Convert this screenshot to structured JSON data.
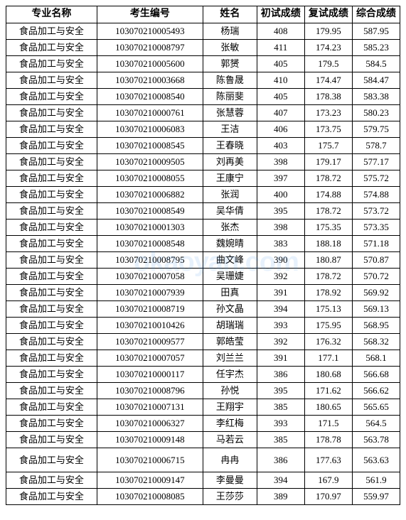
{
  "table": {
    "headers": [
      "专业名称",
      "考生编号",
      "姓名",
      "初试成绩",
      "复试成绩",
      "综合成绩"
    ],
    "rows": [
      [
        "食品加工与安全",
        "103070210005493",
        "杨瑞",
        "408",
        "179.95",
        "587.95"
      ],
      [
        "食品加工与安全",
        "103070210008797",
        "张敏",
        "411",
        "174.23",
        "585.23"
      ],
      [
        "食品加工与安全",
        "103070210005600",
        "郭赟",
        "405",
        "179.5",
        "584.5"
      ],
      [
        "食品加工与安全",
        "103070210003668",
        "陈鲁晟",
        "410",
        "174.47",
        "584.47"
      ],
      [
        "食品加工与安全",
        "103070210008540",
        "陈丽斐",
        "405",
        "178.38",
        "583.38"
      ],
      [
        "食品加工与安全",
        "103070210000761",
        "张慧蓉",
        "407",
        "173.23",
        "580.23"
      ],
      [
        "食品加工与安全",
        "103070210006083",
        "王洁",
        "406",
        "173.75",
        "579.75"
      ],
      [
        "食品加工与安全",
        "103070210008545",
        "王春晓",
        "403",
        "175.7",
        "578.7"
      ],
      [
        "食品加工与安全",
        "103070210009505",
        "刘再美",
        "398",
        "179.17",
        "577.17"
      ],
      [
        "食品加工与安全",
        "103070210008055",
        "王康宁",
        "397",
        "178.72",
        "575.72"
      ],
      [
        "食品加工与安全",
        "103070210006882",
        "张润",
        "400",
        "174.88",
        "574.88"
      ],
      [
        "食品加工与安全",
        "103070210008549",
        "吴华倩",
        "395",
        "178.72",
        "573.72"
      ],
      [
        "食品加工与安全",
        "103070210001303",
        "张杰",
        "398",
        "175.35",
        "573.35"
      ],
      [
        "食品加工与安全",
        "103070210008548",
        "魏婉晴",
        "383",
        "188.18",
        "571.18"
      ],
      [
        "食品加工与安全",
        "103070210008795",
        "曲文峰",
        "390",
        "180.87",
        "570.87"
      ],
      [
        "食品加工与安全",
        "103070210007058",
        "吴珊婕",
        "392",
        "178.72",
        "570.72"
      ],
      [
        "食品加工与安全",
        "103070210007939",
        "田真",
        "391",
        "178.92",
        "569.92"
      ],
      [
        "食品加工与安全",
        "103070210008719",
        "孙文晶",
        "394",
        "175.13",
        "569.13"
      ],
      [
        "食品加工与安全",
        "103070210010426",
        "胡瑞瑞",
        "393",
        "175.95",
        "568.95"
      ],
      [
        "食品加工与安全",
        "103070210009577",
        "郭皓莹",
        "392",
        "176.32",
        "568.32"
      ],
      [
        "食品加工与安全",
        "103070210007057",
        "刘兰兰",
        "391",
        "177.1",
        "568.1"
      ],
      [
        "食品加工与安全",
        "103070210000117",
        "任宇杰",
        "386",
        "180.68",
        "566.68"
      ],
      [
        "食品加工与安全",
        "103070210008796",
        "孙悦",
        "395",
        "171.62",
        "566.62"
      ],
      [
        "食品加工与安全",
        "103070210007131",
        "王翔宇",
        "385",
        "180.65",
        "565.65"
      ],
      [
        "食品加工与安全",
        "103070210006327",
        "李红梅",
        "393",
        "171.5",
        "564.5"
      ],
      [
        "食品加工与安全",
        "103070210009148",
        "马若云",
        "385",
        "178.78",
        "563.78"
      ],
      [
        "食品加工与安全",
        "103070210006715",
        "冉冉",
        "386",
        "177.63",
        "563.63"
      ],
      [
        "食品加工与安全",
        "103070210009147",
        "李曼曼",
        "394",
        "167.9",
        "561.9"
      ],
      [
        "食品加工与安全",
        "103070210008085",
        "王莎莎",
        "389",
        "170.97",
        "559.97"
      ]
    ],
    "column_classes": [
      "col-major",
      "col-id",
      "col-name",
      "col-s1",
      "col-s2",
      "col-s3"
    ],
    "header_fontsize": 14,
    "cell_fontsize": 13,
    "border_color": "#000000",
    "background_color": "#ffffff",
    "tall_row_index": 26
  },
  "watermark": {
    "text": "okaoyan.com",
    "color_rgba": "rgba(70,150,230,0.13)",
    "fontsize": 38
  }
}
